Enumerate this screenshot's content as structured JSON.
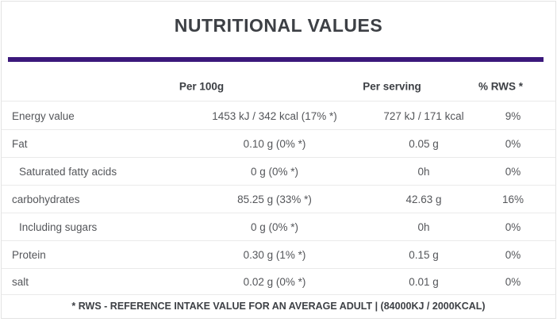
{
  "card": {
    "title": "NUTRITIONAL VALUES",
    "accent_color": "#3b187b",
    "footer_note": "* RWS - REFERENCE INTAKE VALUE FOR AN AVERAGE ADULT | (84000KJ / 2000KCAL)"
  },
  "table": {
    "headers": {
      "per_100g": "Per 100g",
      "per_serving": "Per serving",
      "rws": "% RWS *"
    },
    "rows": [
      {
        "label": "Energy value",
        "per_100g": "1453 kJ / 342 kcal (17% *)",
        "per_serving": "727 kJ / 171 kcal",
        "rws": "9%",
        "indent": false
      },
      {
        "label": "Fat",
        "per_100g": "0.10 g (0% *)",
        "per_serving": "0.05 g",
        "rws": "0%",
        "indent": false
      },
      {
        "label": "Saturated fatty acids",
        "per_100g": "0 g (0% *)",
        "per_serving": "0h",
        "rws": "0%",
        "indent": true
      },
      {
        "label": "carbohydrates",
        "per_100g": "85.25 g (33% *)",
        "per_serving": "42.63 g",
        "rws": "16%",
        "indent": false
      },
      {
        "label": "Including sugars",
        "per_100g": "0 g (0% *)",
        "per_serving": "0h",
        "rws": "0%",
        "indent": true
      },
      {
        "label": "Protein",
        "per_100g": "0.30 g (1% *)",
        "per_serving": "0.15 g",
        "rws": "0%",
        "indent": false
      },
      {
        "label": "salt",
        "per_100g": "0.02 g (0% *)",
        "per_serving": "0.01 g",
        "rws": "0%",
        "indent": false
      }
    ]
  }
}
